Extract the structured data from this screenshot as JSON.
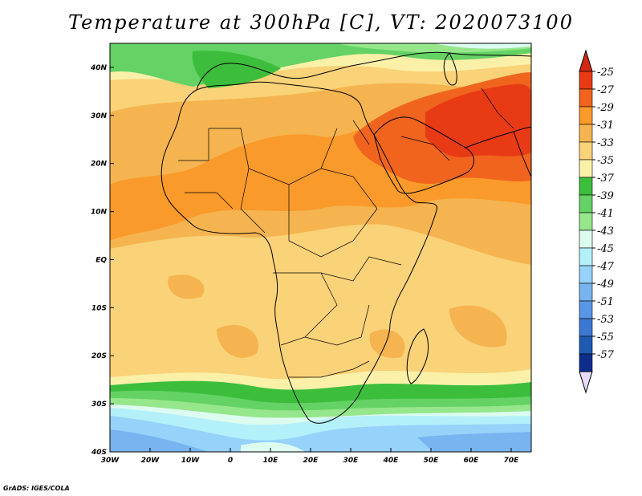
{
  "title": "Temperature at 300hPa [C], VT: 2020073100",
  "credit": "GrADS: IGES/COLA",
  "map": {
    "lon_range": [
      -30,
      75
    ],
    "lat_range": [
      -40,
      45
    ],
    "x_ticks": [
      {
        "lon": -30,
        "label": "30W"
      },
      {
        "lon": -20,
        "label": "20W"
      },
      {
        "lon": -10,
        "label": "10W"
      },
      {
        "lon": 0,
        "label": "0"
      },
      {
        "lon": 10,
        "label": "10E"
      },
      {
        "lon": 20,
        "label": "20E"
      },
      {
        "lon": 30,
        "label": "30E"
      },
      {
        "lon": 40,
        "label": "40E"
      },
      {
        "lon": 50,
        "label": "50E"
      },
      {
        "lon": 60,
        "label": "60E"
      },
      {
        "lon": 70,
        "label": "70E"
      }
    ],
    "y_ticks": [
      {
        "lat": 40,
        "label": "40N"
      },
      {
        "lat": 30,
        "label": "30N"
      },
      {
        "lat": 20,
        "label": "20N"
      },
      {
        "lat": 10,
        "label": "10N"
      },
      {
        "lat": 0,
        "label": "EQ"
      },
      {
        "lat": -10,
        "label": "10S"
      },
      {
        "lat": -20,
        "label": "20S"
      },
      {
        "lat": -30,
        "label": "30S"
      },
      {
        "lat": -40,
        "label": "40S"
      }
    ]
  },
  "colorbar": {
    "labels": [
      "-25",
      "-27",
      "-29",
      "-31",
      "-33",
      "-35",
      "-37",
      "-39",
      "-41",
      "-43",
      "-45",
      "-47",
      "-49",
      "-51",
      "-53",
      "-55",
      "-57"
    ],
    "colors": [
      "#e83a14",
      "#f0641e",
      "#fa9a2a",
      "#f5b450",
      "#fad278",
      "#faf0a8",
      "#3cbe3c",
      "#64d264",
      "#96e68c",
      "#dcfcf0",
      "#b4f0fa",
      "#96d2fa",
      "#78b4f0",
      "#5a96e6",
      "#3c78d2",
      "#1e5ab4",
      "#0c2d8c"
    ],
    "top_arrow_color": "#d22814",
    "bottom_arrow_color": "#e6dcfa"
  },
  "colors": {
    "t_minus_33": "#fad278",
    "t_minus_31": "#f5b450",
    "t_minus_29": "#fa9a2a",
    "t_minus_27": "#f0641e",
    "t_minus_25": "#e83a14",
    "t_minus_35": "#faf0a8",
    "t_minus_37": "#3cbe3c",
    "t_minus_39": "#64d264",
    "t_minus_41": "#96e68c",
    "t_minus_43": "#dcfcf0",
    "t_minus_45": "#b4f0fa",
    "t_minus_47": "#96d2fa",
    "t_minus_49": "#78b4f0"
  }
}
